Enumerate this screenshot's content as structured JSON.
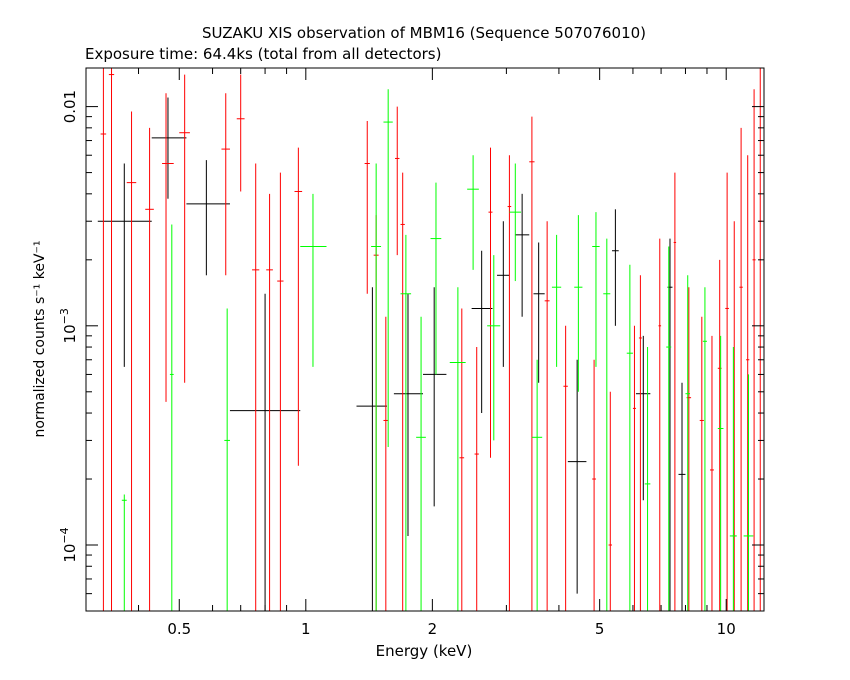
{
  "chart_data": {
    "type": "scatter",
    "title": "SUZAKU XIS observation of MBM16 (Sequence 507076010)",
    "subtitle": "Exposure time: 64.4ks (total from all detectors)",
    "xlabel": "Energy (keV)",
    "ylabel": "normalized counts s⁻¹ keV⁻¹",
    "x_scale": "log",
    "y_scale": "log",
    "xlim": [
      0.3,
      12.3
    ],
    "ylim": [
      5e-05,
      0.015
    ],
    "x_ticks": [
      {
        "value": 0.5,
        "label": "0.5"
      },
      {
        "value": 1,
        "label": "1"
      },
      {
        "value": 2,
        "label": "2"
      },
      {
        "value": 5,
        "label": "5"
      },
      {
        "value": 10,
        "label": "10"
      }
    ],
    "y_ticks": [
      {
        "value": 0.01,
        "base": "0.01",
        "exp": ""
      },
      {
        "value": 0.001,
        "base": "10",
        "exp": "−3"
      },
      {
        "value": 0.0001,
        "base": "10",
        "exp": "−4"
      }
    ],
    "series": [
      {
        "color": "#000000",
        "points": [
          {
            "x": 0.37,
            "xlo": 0.32,
            "xhi": 0.43,
            "y": 0.003,
            "ylo": 0.00065,
            "yhi": 0.0055
          },
          {
            "x": 0.47,
            "xlo": 0.43,
            "xhi": 0.52,
            "y": 0.0072,
            "ylo": 0.0038,
            "yhi": 0.011
          },
          {
            "x": 0.58,
            "xlo": 0.52,
            "xhi": 0.66,
            "y": 0.0036,
            "ylo": 0.0017,
            "yhi": 0.0057
          },
          {
            "x": 0.8,
            "xlo": 0.66,
            "xhi": 0.97,
            "y": 0.00041,
            "ylo": 5e-05,
            "yhi": 0.0014
          },
          {
            "x": 1.44,
            "xlo": 1.32,
            "xhi": 1.56,
            "y": 0.00043,
            "ylo": 5e-05,
            "yhi": 0.0015
          },
          {
            "x": 1.75,
            "xlo": 1.62,
            "xhi": 1.9,
            "y": 0.00049,
            "ylo": 0.00011,
            "yhi": 0.0014
          },
          {
            "x": 2.02,
            "xlo": 1.9,
            "xhi": 2.16,
            "y": 0.0006,
            "ylo": 0.00015,
            "yhi": 0.0015
          },
          {
            "x": 2.62,
            "xlo": 2.48,
            "xhi": 2.78,
            "y": 0.0012,
            "ylo": 0.0004,
            "yhi": 0.0022
          },
          {
            "x": 2.95,
            "xlo": 2.85,
            "xhi": 3.05,
            "y": 0.0017,
            "ylo": 0.00065,
            "yhi": 0.003
          },
          {
            "x": 3.27,
            "xlo": 3.15,
            "xhi": 3.4,
            "y": 0.0026,
            "ylo": 0.0011,
            "yhi": 0.004
          },
          {
            "x": 3.58,
            "xlo": 3.48,
            "xhi": 3.7,
            "y": 0.0014,
            "ylo": 0.00055,
            "yhi": 0.0024
          },
          {
            "x": 4.42,
            "xlo": 4.2,
            "xhi": 4.65,
            "y": 0.00024,
            "ylo": 6e-05,
            "yhi": 0.0007
          },
          {
            "x": 5.45,
            "xlo": 5.35,
            "xhi": 5.55,
            "y": 0.0022,
            "ylo": 0.001,
            "yhi": 0.0034
          },
          {
            "x": 6.35,
            "xlo": 6.1,
            "xhi": 6.6,
            "y": 0.00049,
            "ylo": 0.00016,
            "yhi": 0.0009
          },
          {
            "x": 7.35,
            "xlo": 7.25,
            "xhi": 7.45,
            "y": 0.0015,
            "ylo": 5e-05,
            "yhi": 0.0025
          },
          {
            "x": 7.85,
            "xlo": 7.7,
            "xhi": 8.0,
            "y": 0.00021,
            "ylo": 5e-05,
            "yhi": 0.00055
          }
        ]
      },
      {
        "color": "#ff0000",
        "points": [
          {
            "x": 0.33,
            "xlo": 0.325,
            "xhi": 0.335,
            "y": 0.0075,
            "ylo": 5e-05,
            "yhi": 0.015
          },
          {
            "x": 0.345,
            "xlo": 0.34,
            "xhi": 0.35,
            "y": 0.014,
            "ylo": 5e-05,
            "yhi": 0.015
          },
          {
            "x": 0.385,
            "xlo": 0.375,
            "xhi": 0.395,
            "y": 0.0045,
            "ylo": 5e-05,
            "yhi": 0.0095
          },
          {
            "x": 0.425,
            "xlo": 0.415,
            "xhi": 0.435,
            "y": 0.0034,
            "ylo": 5e-05,
            "yhi": 0.008
          },
          {
            "x": 0.465,
            "xlo": 0.455,
            "xhi": 0.485,
            "y": 0.0055,
            "ylo": 0.00045,
            "yhi": 0.0115
          },
          {
            "x": 0.515,
            "xlo": 0.5,
            "xhi": 0.53,
            "y": 0.0076,
            "ylo": 0.00055,
            "yhi": 0.014
          },
          {
            "x": 0.645,
            "xlo": 0.63,
            "xhi": 0.66,
            "y": 0.0064,
            "ylo": 0.0017,
            "yhi": 0.0115
          },
          {
            "x": 0.7,
            "xlo": 0.685,
            "xhi": 0.715,
            "y": 0.0088,
            "ylo": 0.0041,
            "yhi": 0.014
          },
          {
            "x": 0.76,
            "xlo": 0.745,
            "xhi": 0.775,
            "y": 0.0018,
            "ylo": 5e-05,
            "yhi": 0.0055
          },
          {
            "x": 0.82,
            "xlo": 0.805,
            "xhi": 0.835,
            "y": 0.0018,
            "ylo": 5e-05,
            "yhi": 0.004
          },
          {
            "x": 0.87,
            "xlo": 0.855,
            "xhi": 0.885,
            "y": 0.0016,
            "ylo": 5e-05,
            "yhi": 0.005
          },
          {
            "x": 0.96,
            "xlo": 0.94,
            "xhi": 0.98,
            "y": 0.0041,
            "ylo": 0.00023,
            "yhi": 0.0065
          },
          {
            "x": 1.4,
            "xlo": 1.38,
            "xhi": 1.42,
            "y": 0.0055,
            "ylo": 0.0014,
            "yhi": 0.0086
          },
          {
            "x": 1.47,
            "xlo": 1.45,
            "xhi": 1.49,
            "y": 0.0021,
            "ylo": 5e-05,
            "yhi": 0.0032
          },
          {
            "x": 1.55,
            "xlo": 1.53,
            "xhi": 1.57,
            "y": 0.00037,
            "ylo": 5e-05,
            "yhi": 0.0011
          },
          {
            "x": 1.65,
            "xlo": 1.63,
            "xhi": 1.67,
            "y": 0.0058,
            "ylo": 0.0021,
            "yhi": 0.01
          },
          {
            "x": 1.7,
            "xlo": 1.68,
            "xhi": 1.72,
            "y": 0.0029,
            "ylo": 5e-05,
            "yhi": 0.005
          },
          {
            "x": 2.35,
            "xlo": 2.32,
            "xhi": 2.38,
            "y": 0.00025,
            "ylo": 5e-05,
            "yhi": 0.0012
          },
          {
            "x": 2.55,
            "xlo": 2.52,
            "xhi": 2.58,
            "y": 0.00026,
            "ylo": 5e-05,
            "yhi": 0.0008
          },
          {
            "x": 2.75,
            "xlo": 2.72,
            "xhi": 2.78,
            "y": 0.0033,
            "ylo": 0.00025,
            "yhi": 0.0065
          },
          {
            "x": 3.05,
            "xlo": 3.02,
            "xhi": 3.08,
            "y": 0.0035,
            "ylo": 5e-05,
            "yhi": 0.006
          },
          {
            "x": 3.45,
            "xlo": 3.4,
            "xhi": 3.5,
            "y": 0.0056,
            "ylo": 5e-05,
            "yhi": 0.009
          },
          {
            "x": 3.75,
            "xlo": 3.7,
            "xhi": 3.8,
            "y": 0.0013,
            "ylo": 5e-05,
            "yhi": 0.003
          },
          {
            "x": 4.15,
            "xlo": 4.1,
            "xhi": 4.2,
            "y": 0.00053,
            "ylo": 5e-05,
            "yhi": 0.001
          },
          {
            "x": 4.85,
            "xlo": 4.8,
            "xhi": 4.9,
            "y": 0.0002,
            "ylo": 5e-05,
            "yhi": 0.0007
          },
          {
            "x": 5.3,
            "xlo": 5.25,
            "xhi": 5.35,
            "y": 0.0001,
            "ylo": 5e-05,
            "yhi": 0.0005
          },
          {
            "x": 6.05,
            "xlo": 6.0,
            "xhi": 6.1,
            "y": 0.00042,
            "ylo": 5e-05,
            "yhi": 0.001
          },
          {
            "x": 6.25,
            "xlo": 6.2,
            "xhi": 6.3,
            "y": 0.00088,
            "ylo": 5e-05,
            "yhi": 0.0017
          },
          {
            "x": 6.95,
            "xlo": 6.9,
            "xhi": 7.0,
            "y": 0.001,
            "ylo": 5e-05,
            "yhi": 0.0025
          },
          {
            "x": 7.55,
            "xlo": 7.5,
            "xhi": 7.6,
            "y": 0.0024,
            "ylo": 5e-05,
            "yhi": 0.005
          },
          {
            "x": 8.15,
            "xlo": 8.05,
            "xhi": 8.25,
            "y": 0.00047,
            "ylo": 5e-05,
            "yhi": 0.0015
          },
          {
            "x": 8.75,
            "xlo": 8.65,
            "xhi": 8.85,
            "y": 0.00037,
            "ylo": 5e-05,
            "yhi": 0.0011
          },
          {
            "x": 9.25,
            "xlo": 9.15,
            "xhi": 9.35,
            "y": 0.00022,
            "ylo": 5e-05,
            "yhi": 0.0009
          },
          {
            "x": 9.65,
            "xlo": 9.55,
            "xhi": 9.75,
            "y": 0.00064,
            "ylo": 5e-05,
            "yhi": 0.002
          },
          {
            "x": 10.05,
            "xlo": 9.95,
            "xhi": 10.15,
            "y": 0.0012,
            "ylo": 5e-05,
            "yhi": 0.005
          },
          {
            "x": 10.45,
            "xlo": 10.35,
            "xhi": 10.55,
            "y": 0.00011,
            "ylo": 5e-05,
            "yhi": 0.003
          },
          {
            "x": 10.85,
            "xlo": 10.75,
            "xhi": 10.95,
            "y": 0.0015,
            "ylo": 5e-05,
            "yhi": 0.008
          },
          {
            "x": 11.25,
            "xlo": 11.15,
            "xhi": 11.35,
            "y": 0.0007,
            "ylo": 5e-05,
            "yhi": 0.006
          },
          {
            "x": 11.65,
            "xlo": 11.55,
            "xhi": 11.75,
            "y": 0.002,
            "ylo": 5e-05,
            "yhi": 0.012
          },
          {
            "x": 12.05,
            "xlo": 11.95,
            "xhi": 12.15,
            "y": 0.003,
            "ylo": 5e-05,
            "yhi": 0.015
          }
        ]
      },
      {
        "color": "#00ff00",
        "points": [
          {
            "x": 0.37,
            "xlo": 0.365,
            "xhi": 0.375,
            "y": 0.00016,
            "ylo": 5e-05,
            "yhi": 0.00017
          },
          {
            "x": 0.48,
            "xlo": 0.475,
            "xhi": 0.485,
            "y": 0.0006,
            "ylo": 5e-05,
            "yhi": 0.0029
          },
          {
            "x": 0.65,
            "xlo": 0.64,
            "xhi": 0.66,
            "y": 0.0003,
            "ylo": 5e-05,
            "yhi": 0.0012
          },
          {
            "x": 1.04,
            "xlo": 0.97,
            "xhi": 1.12,
            "y": 0.0023,
            "ylo": 0.00065,
            "yhi": 0.004
          },
          {
            "x": 1.47,
            "xlo": 1.43,
            "xhi": 1.51,
            "y": 0.0023,
            "ylo": 5e-05,
            "yhi": 0.0055
          },
          {
            "x": 1.57,
            "xlo": 1.53,
            "xhi": 1.61,
            "y": 0.0085,
            "ylo": 0.00028,
            "yhi": 0.012
          },
          {
            "x": 1.73,
            "xlo": 1.68,
            "xhi": 1.78,
            "y": 0.0014,
            "ylo": 5e-05,
            "yhi": 0.0026
          },
          {
            "x": 1.88,
            "xlo": 1.83,
            "xhi": 1.93,
            "y": 0.00031,
            "ylo": 5e-05,
            "yhi": 0.0011
          },
          {
            "x": 2.04,
            "xlo": 1.98,
            "xhi": 2.1,
            "y": 0.0025,
            "ylo": 0.0006,
            "yhi": 0.0045
          },
          {
            "x": 2.3,
            "xlo": 2.2,
            "xhi": 2.4,
            "y": 0.00068,
            "ylo": 5e-05,
            "yhi": 0.0015
          },
          {
            "x": 2.5,
            "xlo": 2.42,
            "xhi": 2.58,
            "y": 0.0042,
            "ylo": 0.0018,
            "yhi": 0.006
          },
          {
            "x": 2.8,
            "xlo": 2.7,
            "xhi": 2.9,
            "y": 0.001,
            "ylo": 0.0003,
            "yhi": 0.0021
          },
          {
            "x": 3.15,
            "xlo": 3.05,
            "xhi": 3.25,
            "y": 0.0033,
            "ylo": 0.0016,
            "yhi": 0.0055
          },
          {
            "x": 3.55,
            "xlo": 3.45,
            "xhi": 3.65,
            "y": 0.00031,
            "ylo": 5e-05,
            "yhi": 0.0007
          },
          {
            "x": 3.95,
            "xlo": 3.85,
            "xhi": 4.05,
            "y": 0.0015,
            "ylo": 0.00065,
            "yhi": 0.0026
          },
          {
            "x": 4.45,
            "xlo": 4.35,
            "xhi": 4.55,
            "y": 0.0015,
            "ylo": 0.0005,
            "yhi": 0.0032
          },
          {
            "x": 4.9,
            "xlo": 4.8,
            "xhi": 5.0,
            "y": 0.0023,
            "ylo": 0.00065,
            "yhi": 0.0033
          },
          {
            "x": 5.2,
            "xlo": 5.1,
            "xhi": 5.3,
            "y": 0.0014,
            "ylo": 5e-05,
            "yhi": 0.0025
          },
          {
            "x": 5.9,
            "xlo": 5.8,
            "xhi": 6.0,
            "y": 0.00075,
            "ylo": 5e-05,
            "yhi": 0.0019
          },
          {
            "x": 6.5,
            "xlo": 6.4,
            "xhi": 6.6,
            "y": 0.00019,
            "ylo": 5e-05,
            "yhi": 0.0008
          },
          {
            "x": 7.3,
            "xlo": 7.2,
            "xhi": 7.4,
            "y": 0.0008,
            "ylo": 5e-05,
            "yhi": 0.0023
          },
          {
            "x": 8.1,
            "xlo": 8.0,
            "xhi": 8.2,
            "y": 0.00049,
            "ylo": 5e-05,
            "yhi": 0.0017
          },
          {
            "x": 8.9,
            "xlo": 8.8,
            "xhi": 9.0,
            "y": 0.00085,
            "ylo": 5e-05,
            "yhi": 0.0015
          },
          {
            "x": 9.7,
            "xlo": 9.55,
            "xhi": 9.85,
            "y": 0.00034,
            "ylo": 5e-05,
            "yhi": 0.0009
          },
          {
            "x": 10.4,
            "xlo": 10.2,
            "xhi": 10.6,
            "y": 0.00011,
            "ylo": 5e-05,
            "yhi": 0.0008
          },
          {
            "x": 11.3,
            "xlo": 11.0,
            "xhi": 11.6,
            "y": 0.00011,
            "ylo": 5e-05,
            "yhi": 0.0006
          }
        ]
      }
    ]
  }
}
